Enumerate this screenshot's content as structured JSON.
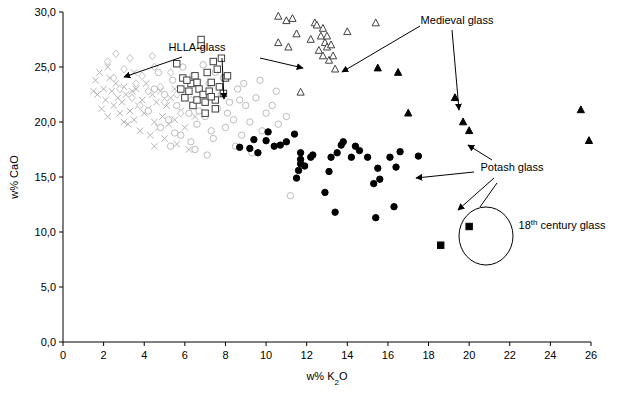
{
  "chart_data": {
    "type": "scatter",
    "x_label": "w% K2O",
    "y_label": "w% CaO",
    "xlim": [
      0,
      26
    ],
    "ylim": [
      0,
      30
    ],
    "xticks": [
      0,
      2,
      4,
      6,
      8,
      10,
      12,
      14,
      16,
      18,
      20,
      22,
      24,
      26
    ],
    "yticks": [
      {
        "value": 0,
        "label": "0,0"
      },
      {
        "value": 5,
        "label": "5,0"
      },
      {
        "value": 10,
        "label": "10,0"
      },
      {
        "value": 15,
        "label": "15,0"
      },
      {
        "value": 20,
        "label": "20,0"
      },
      {
        "value": 25,
        "label": "25,0"
      },
      {
        "value": 30,
        "label": "30,0"
      }
    ],
    "grid": false,
    "annotations": [
      "HLLA-glass",
      "Medieval glass",
      "Potash glass",
      "18th century glass"
    ],
    "series": [
      {
        "color": "#b4b4b4",
        "marker": "x",
        "x": [
          1.6,
          1.7,
          1.8,
          1.9,
          2.0,
          2.1,
          2.2,
          2.3,
          2.4,
          2.5,
          2.6,
          2.7,
          2.8,
          2.9,
          3.0,
          3.1,
          3.2,
          3.3,
          3.4,
          3.5,
          3.6,
          3.7,
          3.8,
          3.9,
          4.0,
          4.1,
          4.2,
          4.3,
          4.4,
          4.5,
          4.6,
          4.7,
          4.8,
          4.9,
          5.0,
          5.1,
          5.2,
          5.3,
          5.5,
          5.6,
          5.8,
          6.0,
          6.2,
          2.2,
          1.5,
          3.5,
          4.5,
          5.5,
          6.5,
          3.0
        ],
        "values": [
          23.8,
          22.5,
          24.5,
          21.2,
          23.0,
          22.0,
          20.5,
          24.0,
          22.8,
          21.5,
          23.5,
          22.2,
          20.8,
          21.8,
          23.2,
          22.5,
          19.8,
          21.0,
          22.8,
          20.2,
          23.0,
          21.5,
          19.2,
          22.0,
          20.8,
          23.5,
          21.2,
          18.8,
          22.5,
          20.0,
          21.8,
          19.5,
          22.8,
          20.5,
          18.5,
          21.5,
          19.8,
          22.2,
          20.2,
          18.0,
          21.0,
          19.5,
          17.5,
          25.0,
          22.8,
          24.5,
          17.8,
          23.0,
          20.5,
          20.0
        ]
      },
      {
        "color": "#c4c4c4",
        "marker": "diamond-open",
        "x": [
          2.2,
          2.6,
          3.0,
          3.3,
          3.6,
          3.9,
          4.2,
          4.5,
          4.8,
          5.0,
          5.3,
          5.6,
          6.0,
          2.8,
          3.8,
          4.4,
          5.8,
          2.5,
          6.3,
          3.4
        ],
        "values": [
          25.5,
          26.2,
          24.8,
          25.8,
          23.5,
          24.2,
          22.8,
          25.0,
          23.2,
          21.8,
          24.5,
          22.5,
          23.8,
          23.0,
          21.5,
          26.0,
          20.8,
          24.0,
          22.0,
          22.2
        ]
      },
      {
        "color": "#bcbcbc",
        "marker": "circle-open",
        "x": [
          4.2,
          4.5,
          4.8,
          5.0,
          5.2,
          5.4,
          5.6,
          5.8,
          6.0,
          6.2,
          6.4,
          6.6,
          6.8,
          7.0,
          7.2,
          7.4,
          7.6,
          7.8,
          8.0,
          8.2,
          8.4,
          8.6,
          8.8,
          9.0,
          9.2,
          9.5,
          9.8,
          10.0,
          10.3,
          10.6,
          11.0,
          11.2,
          5.3,
          6.5,
          7.5,
          8.5,
          9.3,
          4.7,
          5.9,
          6.9,
          7.9,
          8.9,
          6.3,
          7.1,
          9.7,
          10.5,
          5.5,
          6.7,
          7.3,
          8.1,
          8.7
        ],
        "values": [
          21.0,
          23.0,
          19.5,
          22.5,
          20.2,
          23.8,
          21.5,
          18.8,
          22.8,
          20.8,
          24.2,
          19.8,
          22.0,
          20.5,
          23.5,
          18.5,
          21.2,
          22.5,
          19.5,
          21.8,
          20.2,
          23.0,
          18.8,
          21.5,
          20.0,
          22.2,
          19.2,
          20.8,
          21.5,
          19.8,
          20.5,
          13.3,
          17.8,
          17.5,
          24.5,
          17.8,
          17.2,
          24.5,
          25.0,
          25.2,
          24.0,
          23.5,
          18.2,
          17.0,
          23.8,
          22.8,
          19.0,
          21.0,
          19.2,
          20.8,
          22.0
        ]
      },
      {
        "color": "#404040",
        "marker": "square-open",
        "x": [
          5.6,
          5.8,
          5.9,
          6.0,
          6.2,
          6.3,
          6.4,
          6.5,
          6.6,
          6.7,
          6.8,
          6.8,
          6.9,
          7.0,
          7.1,
          7.2,
          7.3,
          7.4,
          7.5,
          7.6,
          7.7,
          7.8,
          7.9,
          8.0,
          8.1,
          7.5,
          6.1,
          7.0,
          6.6,
          7.3
        ],
        "values": [
          25.3,
          23.0,
          24.0,
          22.2,
          22.8,
          23.5,
          21.5,
          24.2,
          22.0,
          23.0,
          27.0,
          27.5,
          22.5,
          21.8,
          24.5,
          22.8,
          23.6,
          25.5,
          22.0,
          24.8,
          23.2,
          25.8,
          22.6,
          24.0,
          24.2,
          21.2,
          23.8,
          20.8,
          23.6,
          22.3
        ]
      },
      {
        "color": "#404040",
        "marker": "triangle-open",
        "x": [
          10.6,
          11.0,
          11.3,
          10.6,
          11.1,
          11.5,
          11.7,
          12.2,
          12.4,
          12.6,
          12.7,
          12.8,
          12.9,
          13.0,
          13.1,
          13.2,
          13.3,
          13.4,
          12.5,
          15.4,
          12.8,
          13.0,
          14.0
        ],
        "values": [
          29.6,
          29.2,
          29.4,
          27.2,
          26.8,
          28.0,
          22.7,
          27.5,
          29.0,
          26.5,
          27.8,
          28.5,
          27.2,
          26.8,
          25.6,
          27.0,
          26.0,
          24.8,
          28.8,
          29.0,
          26.0,
          27.8,
          28.2
        ]
      },
      {
        "color": "#000000",
        "marker": "triangle",
        "x": [
          15.5,
          16.5,
          17.0,
          19.3,
          19.7,
          20.0,
          25.5,
          25.9
        ],
        "values": [
          24.9,
          24.5,
          20.8,
          22.2,
          20.0,
          19.2,
          21.1,
          18.3
        ]
      },
      {
        "color": "#000000",
        "marker": "circle",
        "x": [
          8.7,
          9.2,
          9.4,
          9.6,
          10.0,
          10.1,
          10.4,
          10.7,
          11.0,
          11.4,
          11.5,
          11.6,
          11.7,
          11.7,
          11.9,
          12.2,
          12.3,
          12.9,
          13.1,
          13.2,
          13.4,
          13.5,
          13.7,
          13.8,
          14.2,
          14.4,
          14.6,
          15.0,
          15.3,
          15.4,
          15.5,
          15.6,
          16.1,
          16.3,
          16.6,
          16.4,
          17.5,
          11.7
        ],
        "values": [
          17.7,
          17.6,
          18.4,
          17.2,
          18.3,
          19.1,
          17.8,
          17.9,
          18.2,
          18.9,
          14.9,
          15.6,
          16.2,
          17.2,
          16.0,
          16.8,
          17.0,
          13.6,
          15.5,
          16.8,
          11.8,
          17.2,
          17.9,
          18.2,
          16.8,
          17.8,
          17.4,
          16.8,
          14.4,
          11.3,
          15.8,
          14.8,
          16.8,
          12.3,
          17.3,
          15.9,
          16.9,
          16.6
        ]
      },
      {
        "color": "#000000",
        "marker": "square",
        "x": [
          18.6,
          20.0
        ],
        "values": [
          8.8,
          10.5
        ]
      }
    ]
  }
}
